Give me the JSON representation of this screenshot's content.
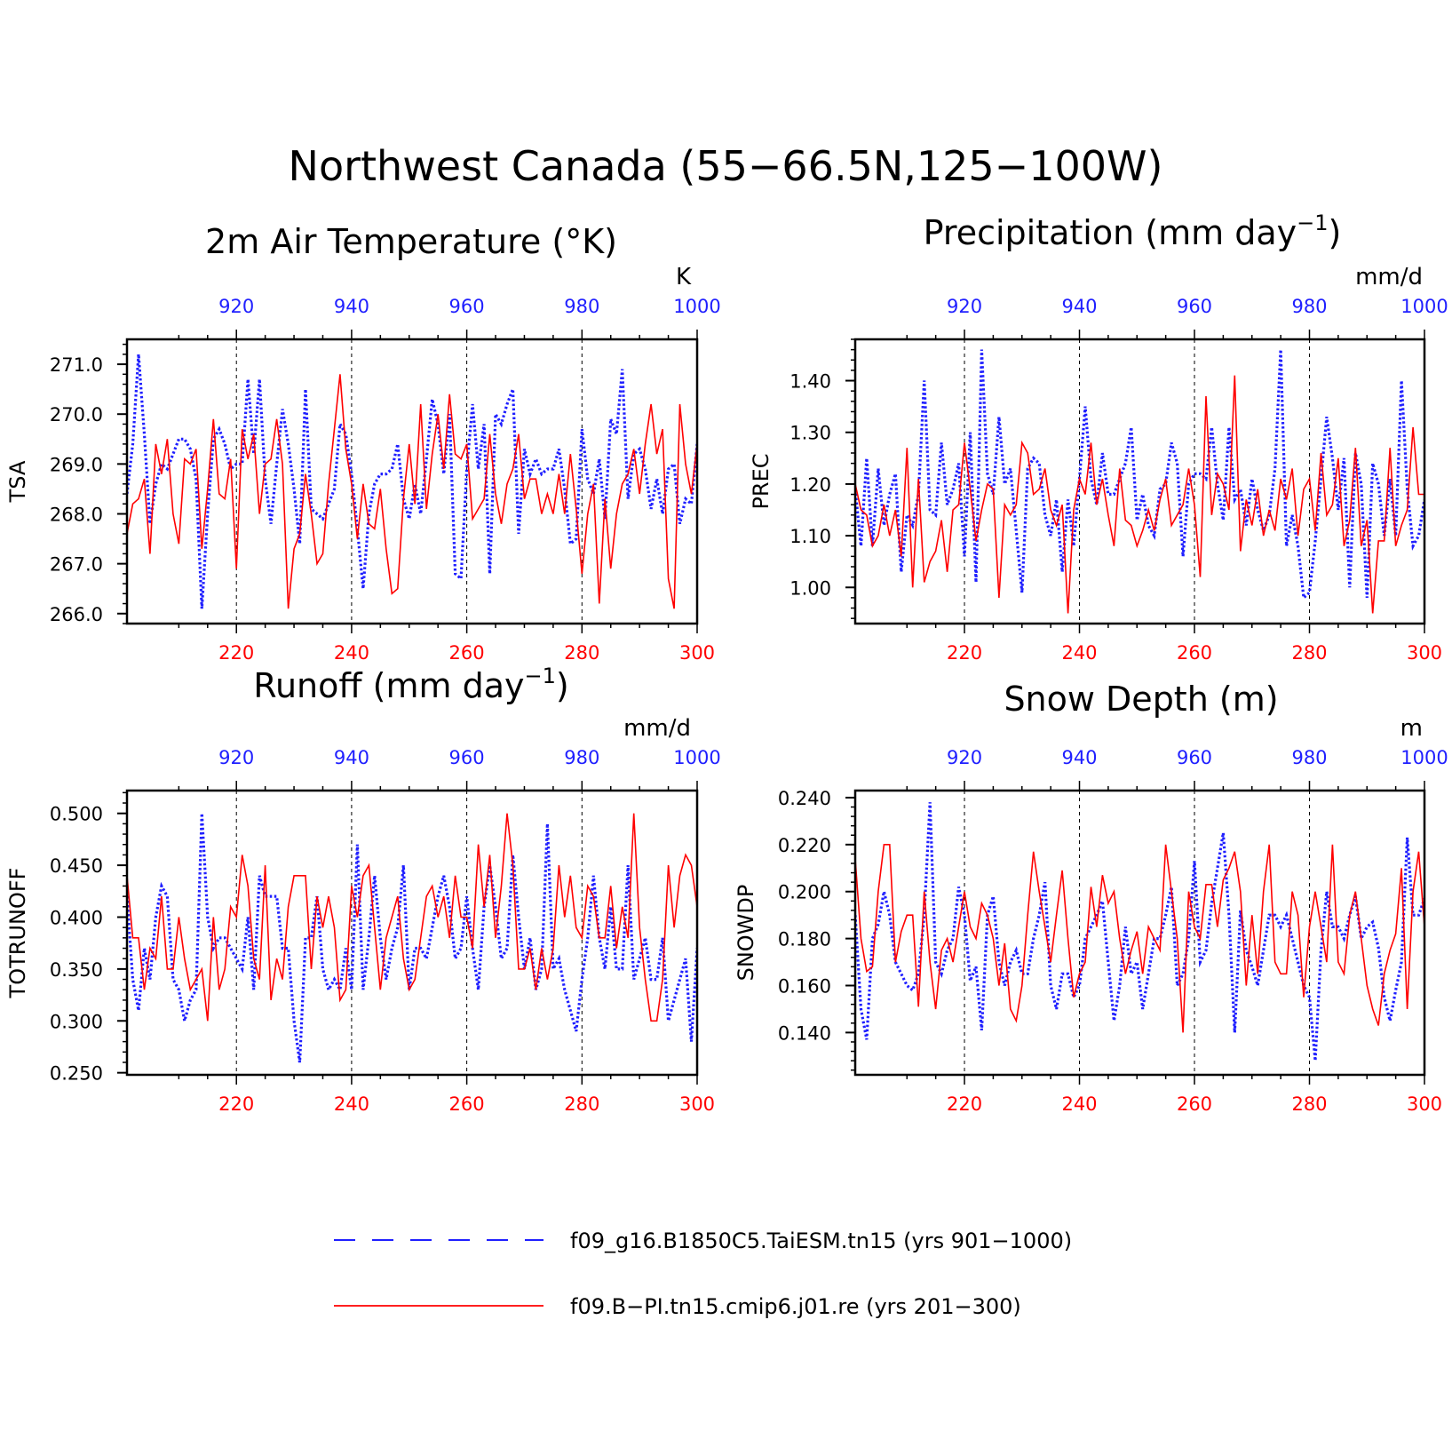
{
  "title": "Northwest Canada (55−66.5N,125−100W)",
  "colors": {
    "blue": "#1f1fff",
    "red": "#ff0000",
    "axis": "#000000"
  },
  "legend": [
    {
      "label": "f09_g16.B1850C5.TaiESM.tn15 (yrs 901−1000)",
      "color": "#1f1fff",
      "style": "dashed"
    },
    {
      "label": "f09.B−PI.tn15.cmip6.j01.re (yrs 201−300)",
      "color": "#ff0000",
      "style": "solid"
    }
  ],
  "chart_data": [
    {
      "type": "line",
      "title": "2m Air Temperature (°K)",
      "ylabel": "TSA",
      "units": "K",
      "ylim": [
        265.8,
        271.5
      ],
      "yticks": [
        "266.0",
        "267.0",
        "268.0",
        "269.0",
        "270.0",
        "271.0"
      ],
      "x_bottom": {
        "range": [
          201,
          300
        ],
        "ticks": [
          "220",
          "240",
          "260",
          "280",
          "300"
        ]
      },
      "x_top": {
        "range": [
          901,
          1000
        ],
        "ticks": [
          "920",
          "940",
          "960",
          "980",
          "1000"
        ]
      },
      "series": [
        {
          "name": "f09_g16.B1850C5.TaiESM.tn15 (yrs 901−1000)",
          "color": "#1f1fff",
          "style": "dotted",
          "values": [
            268.4,
            269.4,
            271.2,
            269.6,
            267.8,
            268.6,
            269.0,
            268.9,
            269.2,
            269.5,
            269.5,
            269.3,
            268.7,
            266.1,
            268.0,
            269.5,
            269.7,
            269.4,
            268.9,
            269.0,
            269.0,
            270.7,
            269.2,
            270.7,
            268.7,
            267.8,
            269.0,
            270.1,
            269.4,
            268.5,
            267.4,
            270.5,
            268.1,
            268.0,
            267.9,
            268.2,
            268.5,
            269.8,
            269.6,
            268.8,
            267.7,
            266.5,
            268.0,
            268.6,
            268.8,
            268.8,
            268.9,
            269.4,
            268.3,
            267.9,
            268.6,
            268.0,
            269.1,
            270.3,
            269.8,
            268.8,
            270.0,
            266.8,
            266.7,
            268.9,
            270.2,
            268.9,
            269.8,
            266.8,
            270.0,
            269.8,
            270.2,
            270.5,
            267.6,
            269.3,
            268.8,
            269.1,
            268.8,
            268.9,
            268.9,
            269.3,
            268.5,
            267.4,
            267.5,
            269.7,
            268.7,
            268.4,
            269.1,
            267.9,
            269.9,
            269.6,
            270.9,
            268.3,
            269.2,
            269.3,
            268.9,
            268.1,
            268.7,
            268.0,
            268.9,
            269.0,
            267.8,
            268.3,
            268.2,
            269.4
          ]
        },
        {
          "name": "f09.B−PI.tn15.cmip6.j01.re (yrs 201−300)",
          "color": "#ff0000",
          "style": "solid",
          "values": [
            267.6,
            268.2,
            268.3,
            268.7,
            267.2,
            269.4,
            268.8,
            269.5,
            268.0,
            267.4,
            269.1,
            269.0,
            269.3,
            267.3,
            268.5,
            269.9,
            268.4,
            268.3,
            269.1,
            266.9,
            269.7,
            269.1,
            269.6,
            268.0,
            269.0,
            269.1,
            269.9,
            269.0,
            266.1,
            267.3,
            267.6,
            268.8,
            268.0,
            267.0,
            267.2,
            268.6,
            269.7,
            270.8,
            269.3,
            268.6,
            267.5,
            268.6,
            267.8,
            267.7,
            268.5,
            267.3,
            266.4,
            266.5,
            268.3,
            269.4,
            268.2,
            270.2,
            268.1,
            269.2,
            270.0,
            268.9,
            270.4,
            269.2,
            269.1,
            269.4,
            267.9,
            268.1,
            268.3,
            269.6,
            268.4,
            267.8,
            268.6,
            268.9,
            269.6,
            268.3,
            268.7,
            268.7,
            268.0,
            268.4,
            268.0,
            268.8,
            268.0,
            269.2,
            268.1,
            266.8,
            268.0,
            268.6,
            266.2,
            268.3,
            266.9,
            268.0,
            268.6,
            268.8,
            269.3,
            268.4,
            269.4,
            270.2,
            269.2,
            269.7,
            266.7,
            266.1,
            270.2,
            269.0,
            268.4,
            269.4
          ]
        }
      ]
    },
    {
      "type": "line",
      "title": "Precipitation (mm day",
      "title_sup": "−1",
      "title_end": ")",
      "ylabel": "PREC",
      "units": "mm/d",
      "ylim": [
        0.93,
        1.48
      ],
      "yticks": [
        "1.00",
        "1.10",
        "1.20",
        "1.30",
        "1.40"
      ],
      "x_bottom": {
        "range": [
          201,
          300
        ],
        "ticks": [
          "220",
          "240",
          "260",
          "280",
          "300"
        ]
      },
      "x_top": {
        "range": [
          901,
          1000
        ],
        "ticks": [
          "920",
          "940",
          "960",
          "980",
          "1000"
        ]
      },
      "series": [
        {
          "name": "f09_g16.B1850C5.TaiESM.tn15 (yrs 901−1000)",
          "color": "#1f1fff",
          "style": "dotted",
          "values": [
            1.19,
            1.08,
            1.25,
            1.08,
            1.23,
            1.12,
            1.18,
            1.22,
            1.03,
            1.14,
            1.12,
            1.18,
            1.4,
            1.15,
            1.14,
            1.28,
            1.16,
            1.19,
            1.24,
            1.06,
            1.3,
            1.01,
            1.46,
            1.22,
            1.18,
            1.33,
            1.2,
            1.23,
            1.11,
            0.99,
            1.23,
            1.25,
            1.24,
            1.14,
            1.1,
            1.17,
            1.03,
            1.17,
            1.08,
            1.21,
            1.35,
            1.21,
            1.16,
            1.26,
            1.18,
            1.18,
            1.21,
            1.24,
            1.31,
            1.13,
            1.18,
            1.12,
            1.1,
            1.19,
            1.2,
            1.28,
            1.24,
            1.06,
            1.2,
            1.22,
            1.22,
            1.21,
            1.31,
            1.2,
            1.13,
            1.31,
            1.17,
            1.19,
            1.12,
            1.21,
            1.15,
            1.11,
            1.14,
            1.23,
            1.46,
            1.08,
            1.14,
            1.08,
            0.98,
            0.99,
            1.09,
            1.21,
            1.33,
            1.25,
            1.15,
            1.25,
            1.0,
            1.26,
            1.2,
            0.98,
            1.24,
            1.2,
            1.1,
            1.21,
            1.1,
            1.4,
            1.19,
            1.08,
            1.1,
            1.17
          ]
        },
        {
          "name": "f09.B−PI.tn15.cmip6.j01.re (yrs 201−300)",
          "color": "#ff0000",
          "style": "solid",
          "values": [
            1.2,
            1.15,
            1.14,
            1.08,
            1.1,
            1.16,
            1.1,
            1.15,
            1.06,
            1.27,
            1.0,
            1.21,
            1.01,
            1.05,
            1.07,
            1.13,
            1.03,
            1.15,
            1.16,
            1.28,
            1.19,
            1.09,
            1.15,
            1.2,
            1.19,
            0.98,
            1.16,
            1.14,
            1.16,
            1.28,
            1.26,
            1.18,
            1.19,
            1.23,
            1.15,
            1.12,
            1.16,
            0.95,
            1.15,
            1.21,
            1.18,
            1.28,
            1.16,
            1.21,
            1.14,
            1.08,
            1.23,
            1.13,
            1.12,
            1.08,
            1.11,
            1.15,
            1.11,
            1.17,
            1.21,
            1.12,
            1.14,
            1.16,
            1.23,
            1.16,
            1.02,
            1.37,
            1.14,
            1.22,
            1.2,
            1.15,
            1.41,
            1.07,
            1.17,
            1.12,
            1.19,
            1.1,
            1.15,
            1.11,
            1.21,
            1.17,
            1.23,
            1.1,
            1.19,
            1.21,
            1.11,
            1.26,
            1.14,
            1.16,
            1.25,
            1.08,
            1.13,
            1.27,
            1.08,
            1.13,
            0.95,
            1.09,
            1.09,
            1.27,
            1.08,
            1.12,
            1.15,
            1.31,
            1.18,
            1.18
          ]
        }
      ]
    },
    {
      "type": "line",
      "title": "Runoff (mm day",
      "title_sup": "−1",
      "title_end": ")",
      "ylabel": "TOTRUNOFF",
      "units": "mm/d",
      "ylim": [
        0.248,
        0.522
      ],
      "yticks": [
        "0.250",
        "0.300",
        "0.350",
        "0.400",
        "0.450",
        "0.500"
      ],
      "x_bottom": {
        "range": [
          201,
          300
        ],
        "ticks": [
          "220",
          "240",
          "260",
          "280",
          "300"
        ]
      },
      "x_top": {
        "range": [
          901,
          1000
        ],
        "ticks": [
          "920",
          "940",
          "960",
          "980",
          "1000"
        ]
      },
      "series": [
        {
          "name": "f09_g16.B1850C5.TaiESM.tn15 (yrs 901−1000)",
          "color": "#1f1fff",
          "style": "dotted",
          "values": [
            0.42,
            0.34,
            0.31,
            0.37,
            0.34,
            0.4,
            0.43,
            0.42,
            0.34,
            0.33,
            0.3,
            0.32,
            0.33,
            0.5,
            0.4,
            0.37,
            0.38,
            0.38,
            0.37,
            0.36,
            0.35,
            0.4,
            0.33,
            0.44,
            0.42,
            0.42,
            0.42,
            0.37,
            0.37,
            0.3,
            0.26,
            0.38,
            0.38,
            0.42,
            0.35,
            0.33,
            0.34,
            0.33,
            0.37,
            0.33,
            0.47,
            0.33,
            0.38,
            0.44,
            0.38,
            0.34,
            0.37,
            0.39,
            0.45,
            0.33,
            0.37,
            0.37,
            0.36,
            0.39,
            0.42,
            0.44,
            0.41,
            0.36,
            0.37,
            0.42,
            0.37,
            0.33,
            0.41,
            0.45,
            0.41,
            0.36,
            0.37,
            0.46,
            0.4,
            0.35,
            0.38,
            0.33,
            0.35,
            0.49,
            0.35,
            0.36,
            0.33,
            0.31,
            0.29,
            0.34,
            0.38,
            0.44,
            0.38,
            0.35,
            0.41,
            0.35,
            0.35,
            0.45,
            0.34,
            0.36,
            0.38,
            0.34,
            0.34,
            0.38,
            0.3,
            0.32,
            0.34,
            0.36,
            0.28,
            0.37
          ]
        },
        {
          "name": "f09.B−PI.tn15.cmip6.j01.re (yrs 201−300)",
          "color": "#ff0000",
          "style": "solid",
          "values": [
            0.44,
            0.38,
            0.38,
            0.33,
            0.37,
            0.36,
            0.42,
            0.35,
            0.35,
            0.4,
            0.36,
            0.33,
            0.34,
            0.35,
            0.3,
            0.4,
            0.33,
            0.35,
            0.41,
            0.4,
            0.46,
            0.43,
            0.36,
            0.34,
            0.45,
            0.32,
            0.36,
            0.34,
            0.41,
            0.44,
            0.44,
            0.44,
            0.35,
            0.42,
            0.39,
            0.42,
            0.39,
            0.32,
            0.33,
            0.43,
            0.4,
            0.44,
            0.45,
            0.39,
            0.33,
            0.38,
            0.4,
            0.42,
            0.36,
            0.33,
            0.34,
            0.38,
            0.42,
            0.43,
            0.4,
            0.42,
            0.38,
            0.44,
            0.4,
            0.4,
            0.37,
            0.47,
            0.41,
            0.46,
            0.38,
            0.43,
            0.5,
            0.45,
            0.35,
            0.35,
            0.37,
            0.33,
            0.37,
            0.34,
            0.37,
            0.45,
            0.4,
            0.44,
            0.39,
            0.38,
            0.43,
            0.42,
            0.38,
            0.38,
            0.43,
            0.37,
            0.41,
            0.38,
            0.5,
            0.39,
            0.34,
            0.3,
            0.3,
            0.34,
            0.45,
            0.39,
            0.44,
            0.46,
            0.45,
            0.41
          ]
        }
      ]
    },
    {
      "type": "line",
      "title": "Snow Depth (m)",
      "ylabel": "SNOWDP",
      "units": "m",
      "ylim": [
        0.122,
        0.243
      ],
      "yticks": [
        "0.140",
        "0.160",
        "0.180",
        "0.200",
        "0.220",
        "0.240"
      ],
      "x_bottom": {
        "range": [
          201,
          300
        ],
        "ticks": [
          "220",
          "240",
          "260",
          "280",
          "300"
        ]
      },
      "x_top": {
        "range": [
          901,
          1000
        ],
        "ticks": [
          "920",
          "940",
          "960",
          "980",
          "1000"
        ]
      },
      "series": [
        {
          "name": "f09_g16.B1850C5.TaiESM.tn15 (yrs 901−1000)",
          "color": "#1f1fff",
          "style": "dotted",
          "values": [
            0.19,
            0.15,
            0.137,
            0.18,
            0.186,
            0.2,
            0.19,
            0.17,
            0.165,
            0.16,
            0.158,
            0.165,
            0.19,
            0.238,
            0.17,
            0.165,
            0.175,
            0.18,
            0.202,
            0.19,
            0.162,
            0.168,
            0.141,
            0.19,
            0.198,
            0.17,
            0.16,
            0.17,
            0.175,
            0.165,
            0.165,
            0.18,
            0.19,
            0.204,
            0.16,
            0.15,
            0.165,
            0.165,
            0.155,
            0.16,
            0.18,
            0.185,
            0.19,
            0.196,
            0.17,
            0.145,
            0.16,
            0.185,
            0.165,
            0.17,
            0.15,
            0.165,
            0.18,
            0.18,
            0.19,
            0.202,
            0.16,
            0.165,
            0.18,
            0.213,
            0.17,
            0.175,
            0.195,
            0.21,
            0.225,
            0.19,
            0.14,
            0.192,
            0.175,
            0.168,
            0.16,
            0.175,
            0.19,
            0.19,
            0.185,
            0.19,
            0.18,
            0.17,
            0.16,
            0.155,
            0.128,
            0.175,
            0.2,
            0.185,
            0.185,
            0.18,
            0.19,
            0.198,
            0.18,
            0.185,
            0.187,
            0.176,
            0.155,
            0.145,
            0.158,
            0.17,
            0.223,
            0.19,
            0.19,
            0.197
          ]
        },
        {
          "name": "f09.B−PI.tn15.cmip6.j01.re (yrs 201−300)",
          "color": "#ff0000",
          "style": "solid",
          "values": [
            0.214,
            0.18,
            0.166,
            0.168,
            0.2,
            0.22,
            0.22,
            0.17,
            0.183,
            0.19,
            0.19,
            0.151,
            0.2,
            0.17,
            0.15,
            0.175,
            0.18,
            0.17,
            0.185,
            0.2,
            0.185,
            0.18,
            0.195,
            0.19,
            0.18,
            0.16,
            0.178,
            0.15,
            0.145,
            0.16,
            0.19,
            0.217,
            0.2,
            0.185,
            0.17,
            0.19,
            0.209,
            0.18,
            0.155,
            0.165,
            0.17,
            0.202,
            0.185,
            0.207,
            0.195,
            0.2,
            0.18,
            0.165,
            0.175,
            0.183,
            0.165,
            0.185,
            0.18,
            0.175,
            0.22,
            0.2,
            0.18,
            0.14,
            0.2,
            0.185,
            0.18,
            0.203,
            0.203,
            0.185,
            0.205,
            0.21,
            0.217,
            0.2,
            0.16,
            0.19,
            0.165,
            0.2,
            0.22,
            0.17,
            0.165,
            0.165,
            0.2,
            0.19,
            0.155,
            0.185,
            0.2,
            0.185,
            0.17,
            0.22,
            0.17,
            0.165,
            0.19,
            0.2,
            0.18,
            0.16,
            0.15,
            0.143,
            0.165,
            0.175,
            0.182,
            0.21,
            0.15,
            0.2,
            0.217,
            0.185
          ]
        }
      ]
    }
  ]
}
